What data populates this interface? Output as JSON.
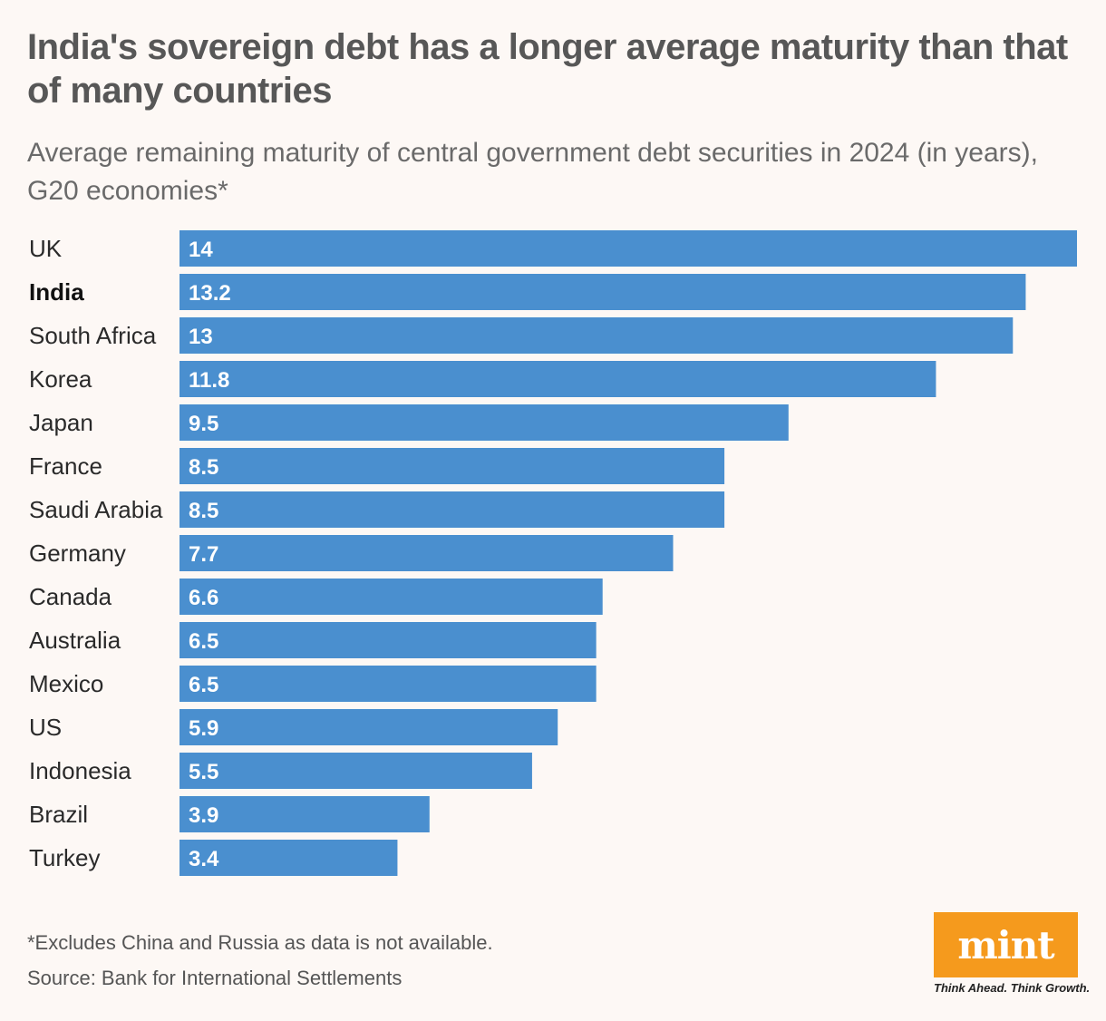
{
  "title": "India's sovereign debt has a longer average maturity than that of many countries",
  "subtitle": "Average remaining maturity of central government debt securities in 2024 (in years), G20 economies*",
  "footnote": "*Excludes China and Russia as data is not available.",
  "source": "Source: Bank for International Settlements",
  "logo": {
    "text": "mint",
    "tagline": "Think Ahead. Think Growth."
  },
  "colors": {
    "bar": "#4a8fcf",
    "background": "#fdf8f5",
    "logo": "#f59a1d"
  },
  "chart_data": {
    "type": "bar",
    "orientation": "horizontal",
    "categories": [
      "UK",
      "India",
      "South Africa",
      "Korea",
      "Japan",
      "France",
      "Saudi Arabia",
      "Germany",
      "Canada",
      "Australia",
      "Mexico",
      "US",
      "Indonesia",
      "Brazil",
      "Turkey"
    ],
    "values": [
      14,
      13.2,
      13,
      11.8,
      9.5,
      8.5,
      8.5,
      7.7,
      6.6,
      6.5,
      6.5,
      5.9,
      5.5,
      3.9,
      3.4
    ],
    "value_labels": [
      "14",
      "13.2",
      "13",
      "11.8",
      "9.5",
      "8.5",
      "8.5",
      "7.7",
      "6.6",
      "6.5",
      "6.5",
      "5.9",
      "5.5",
      "3.9",
      "3.4"
    ],
    "highlight": "India",
    "xlim": [
      0,
      14
    ],
    "grid": false,
    "legend": "none"
  }
}
